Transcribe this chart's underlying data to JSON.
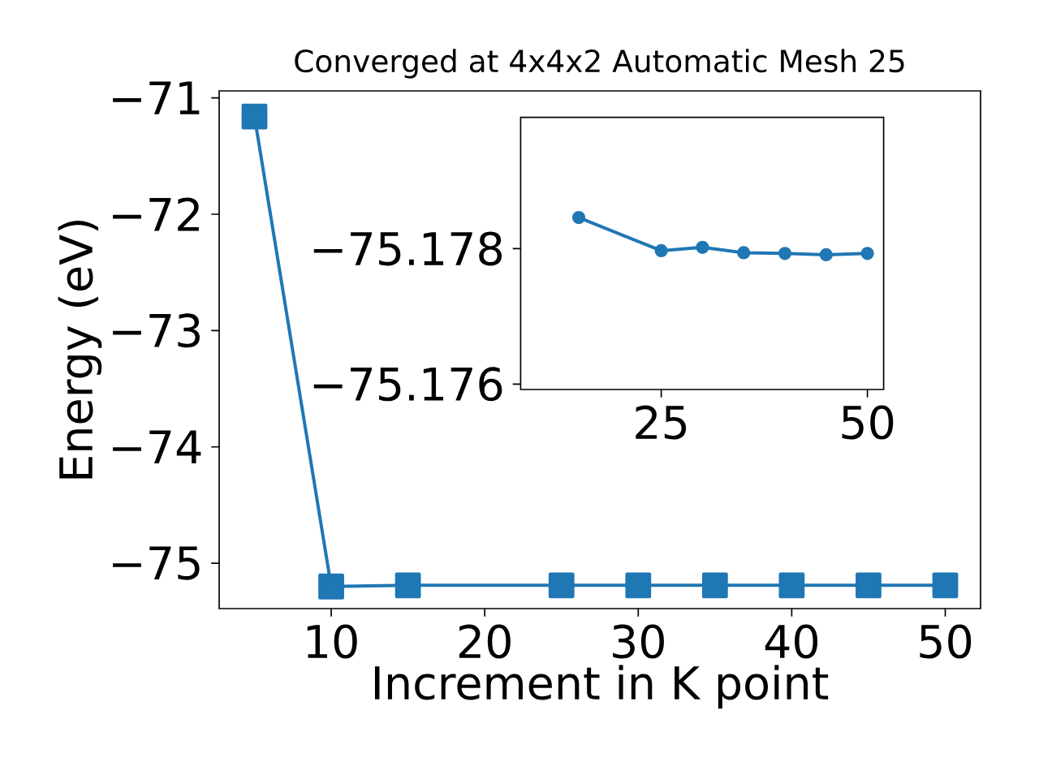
{
  "chart_data": [
    {
      "type": "line",
      "title": "Converged at 4x4x2 Automatic Mesh 25",
      "xlabel": "Increment in K point",
      "ylabel": "Energy (eV)",
      "marker": "square",
      "x": [
        5,
        10,
        15,
        25,
        30,
        35,
        40,
        45,
        50
      ],
      "series": [
        {
          "color": "#1f77b4",
          "values": [
            -71.16,
            -75.2,
            -75.19,
            -75.19,
            -75.19,
            -75.19,
            -75.19,
            -75.19,
            -75.19
          ]
        }
      ],
      "xlim": [
        2.7,
        52.3
      ],
      "ylim": [
        -75.39,
        -70.94
      ],
      "xticks": [
        10,
        20,
        30,
        40,
        50
      ],
      "yticks": [
        {
          "value": -75,
          "label": "−75"
        },
        {
          "value": -74,
          "label": "−74"
        },
        {
          "value": -73,
          "label": "−73"
        },
        {
          "value": -72,
          "label": "−72"
        },
        {
          "value": -71,
          "label": "−71"
        }
      ]
    },
    {
      "type": "line",
      "marker": "circle",
      "x": [
        15,
        25,
        30,
        35,
        40,
        45,
        50
      ],
      "series": [
        {
          "color": "#1f77b4",
          "values": [
            -75.17846,
            -75.17797,
            -75.17802,
            -75.17794,
            -75.17793,
            -75.17791,
            -75.17793
          ]
        }
      ],
      "xlim": [
        7.95,
        51.97
      ],
      "ylim": [
        -75.17592,
        -75.17994
      ],
      "xticks": [
        25,
        50
      ],
      "yticks": [
        {
          "value": -75.178,
          "label": "−75.178"
        },
        {
          "value": -75.176,
          "label": "−75.176"
        }
      ]
    }
  ]
}
